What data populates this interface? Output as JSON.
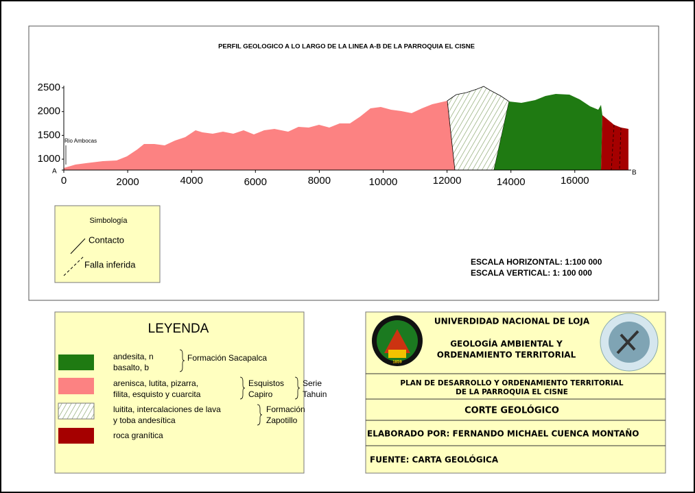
{
  "profile": {
    "title": "PERFIL GEOLOGICO A LO LARGO DE LA LINEA A-B DE LA PARROQUIA EL CISNE",
    "y_labels": [
      2500,
      2000,
      1500,
      1000
    ],
    "x_labels": [
      0,
      2000,
      4000,
      6000,
      8000,
      10000,
      12000,
      14000,
      16000
    ],
    "start": "A",
    "end": "B",
    "annotation": "Rio Ambocas"
  },
  "symbology": {
    "title": "Simbología",
    "items": [
      "Contacto",
      "Falla inferida"
    ]
  },
  "scale": [
    "ESCALA HORIZONTAL: 1:100 000",
    "ESCALA VERTICAL: 1: 100 000"
  ],
  "legend": {
    "title": "LEYENDA",
    "items": [
      {
        "lines": [
          "andesita, n",
          "basalto, b"
        ],
        "unit": [
          "Formación Sacapalca"
        ]
      },
      {
        "lines": [
          "arenisca, lutita, pizarra,",
          "filita, esquisto y cuarcita"
        ],
        "unit": [
          "Esquistos",
          "Capiro"
        ],
        "series": [
          "Serie",
          "Tahuin"
        ]
      },
      {
        "lines": [
          "luitita, intercalaciones de lava",
          "y toba andesítica"
        ],
        "unit": [
          "Formación",
          "Zapotillo"
        ]
      },
      {
        "lines": [
          "roca granítica"
        ]
      }
    ]
  },
  "title_block": {
    "university": "UNIVERDIDAD NACIONAL DE LOJA",
    "career": [
      "GEOLOGÍA AMBIENTAL Y",
      "ORDENAMIENTO TERRITORIAL"
    ],
    "logo_year": "1859",
    "project": [
      "PLAN DE DESARROLLO Y ORDENAMIENTO TERRITORIAL",
      "DE LA PARROQUIA EL CISNE"
    ],
    "sheet": "CORTE GEOLÓGICO",
    "author": "ELABORADO POR: FERNANDO MICHAEL CUENCA MONTAÑO",
    "source": "FUENTE: CARTA GEOLÓGICA"
  }
}
